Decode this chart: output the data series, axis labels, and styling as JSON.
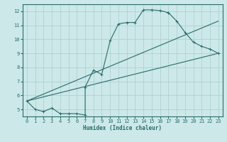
{
  "xlabel": "Humidex (Indice chaleur)",
  "xlim": [
    -0.5,
    23.5
  ],
  "ylim": [
    4.5,
    12.5
  ],
  "bg_color": "#cce8e8",
  "line_color": "#2a6b6b",
  "grid_color": "#aacece",
  "series": [
    {
      "x": [
        0,
        1,
        2,
        3,
        4,
        5,
        6,
        7,
        7,
        8,
        9,
        10,
        11,
        12,
        13,
        14,
        15,
        16,
        17
      ],
      "y": [
        5.6,
        5.0,
        4.85,
        5.1,
        4.7,
        4.7,
        4.7,
        4.6,
        6.6,
        7.8,
        7.5,
        9.9,
        11.1,
        11.2,
        11.2,
        12.1,
        12.1,
        12.05,
        11.9
      ],
      "markers": true
    },
    {
      "x": [
        17,
        18,
        19,
        20,
        21,
        22,
        23
      ],
      "y": [
        11.9,
        11.3,
        10.5,
        9.8,
        9.5,
        9.3,
        9.0
      ],
      "markers": true
    },
    {
      "x": [
        0,
        23
      ],
      "y": [
        5.6,
        11.3
      ],
      "markers": false
    },
    {
      "x": [
        0,
        23
      ],
      "y": [
        5.6,
        9.0
      ],
      "markers": false
    }
  ],
  "xticks": [
    0,
    1,
    2,
    3,
    4,
    5,
    6,
    7,
    8,
    9,
    10,
    11,
    12,
    13,
    14,
    15,
    16,
    17,
    18,
    19,
    20,
    21,
    22,
    23
  ],
  "yticks": [
    5,
    6,
    7,
    8,
    9,
    10,
    11,
    12
  ]
}
